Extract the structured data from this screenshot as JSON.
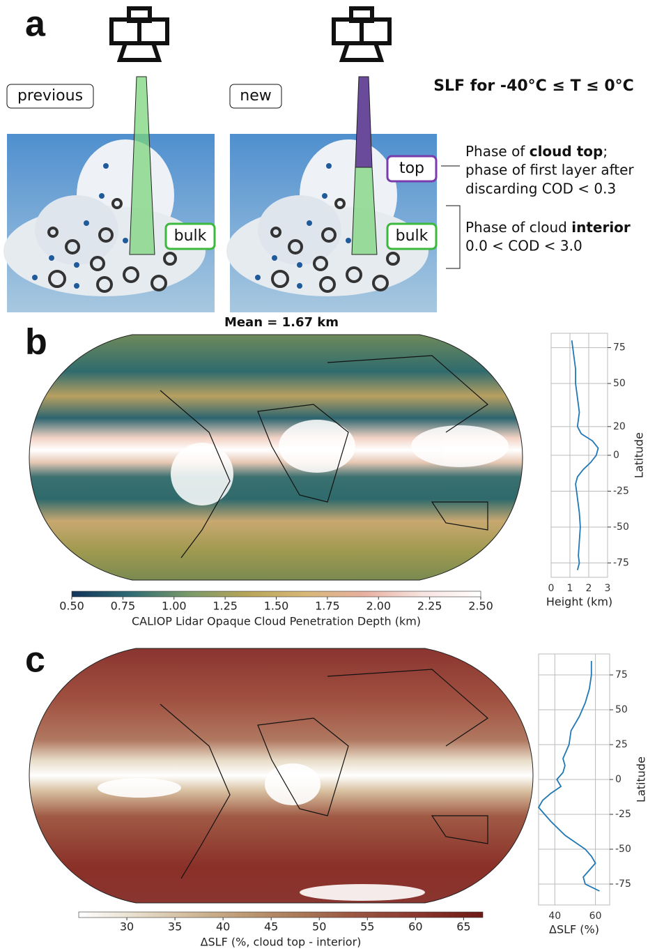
{
  "panel_a": {
    "label": "a",
    "title": "SLF for -40°C ≤ T ≤ 0°C",
    "left_tag": "previous",
    "right_tag": "new",
    "bulk_left": "bulk",
    "bulk_right": "bulk",
    "top": "top",
    "top_note": [
      "Phase of ",
      "cloud top",
      ";",
      "phase of first layer after",
      "discarding COD < 0.3"
    ],
    "interior_note": [
      "Phase of cloud ",
      "interior",
      "0.0 < COD < 3.0"
    ]
  },
  "panel_b": {
    "label": "b",
    "map_title": "Mean = 1.67 km"
  },
  "panel_c": {
    "label": "c"
  },
  "chart_data": [
    {
      "type": "profile",
      "xlabel": "Height (km)",
      "ylabel": "Latitude",
      "color": "#1f77b4",
      "grid": true,
      "latitude": [
        80,
        70,
        60,
        50,
        40,
        30,
        20,
        15,
        10,
        5,
        0,
        -5,
        -10,
        -15,
        -20,
        -25,
        -30,
        -40,
        -50,
        -60,
        -70,
        -75,
        -80
      ],
      "values": [
        1.1,
        1.2,
        1.3,
        1.3,
        1.4,
        1.5,
        1.4,
        1.6,
        2.2,
        2.5,
        2.4,
        2.1,
        1.7,
        1.4,
        1.3,
        1.35,
        1.4,
        1.5,
        1.55,
        1.5,
        1.45,
        1.5,
        1.4
      ],
      "xlim": [
        0,
        3
      ],
      "xticks": [
        0,
        1,
        2,
        3
      ],
      "ylim": [
        -85,
        85
      ],
      "yticks": [
        75,
        50,
        20,
        0,
        -25,
        -50,
        -75
      ]
    },
    {
      "type": "colorbar",
      "label": "CALIOP Lidar Opaque Cloud Penetration Depth (km)",
      "colors": [
        "#12345a",
        "#2f6b74",
        "#7a9a6a",
        "#b8a458",
        "#d8b878",
        "#e8b0a0",
        "#f8e4e0",
        "#ffffff"
      ],
      "xlim": [
        0.5,
        2.5
      ],
      "xticks": [
        {
          "value": 0.5,
          "label": "0.50"
        },
        0.75,
        {
          "value": 1,
          "label": "1.00"
        },
        1.25,
        {
          "value": 1.5,
          "label": "1.50"
        },
        1.75,
        {
          "value": 2,
          "label": "2.00"
        },
        2.25,
        {
          "value": 2.5,
          "label": "2.50"
        }
      ]
    },
    {
      "type": "profile",
      "xlabel": "ΔSLF (%)",
      "ylabel": "Latitude",
      "color": "#1f77b4",
      "grid": true,
      "latitude": [
        85,
        75,
        65,
        55,
        45,
        35,
        25,
        15,
        10,
        5,
        0,
        -5,
        -10,
        -15,
        -20,
        -25,
        -30,
        -40,
        -50,
        -55,
        -60,
        -65,
        -70,
        -75,
        -80
      ],
      "values": [
        58,
        58,
        57,
        55,
        52,
        48,
        47,
        44,
        45,
        44,
        41,
        43,
        38,
        34,
        32,
        35,
        38,
        45,
        55,
        58,
        60,
        57,
        54,
        55,
        62
      ],
      "xlim": [
        32,
        67
      ],
      "xticks": [
        40,
        60
      ],
      "ylim": [
        -90,
        90
      ],
      "yticks": [
        75,
        50,
        25,
        0,
        -25,
        -50,
        -75
      ]
    },
    {
      "type": "colorbar",
      "label": "ΔSLF (%, cloud top - interior)",
      "colors": [
        "#ffffff",
        "#e4d8c4",
        "#c8ac88",
        "#b08460",
        "#9c5a44",
        "#8a3830",
        "#6e1a16"
      ],
      "xlim": [
        25,
        67
      ],
      "xticks": [
        30,
        35,
        40,
        45,
        50,
        55,
        60,
        65
      ]
    }
  ]
}
